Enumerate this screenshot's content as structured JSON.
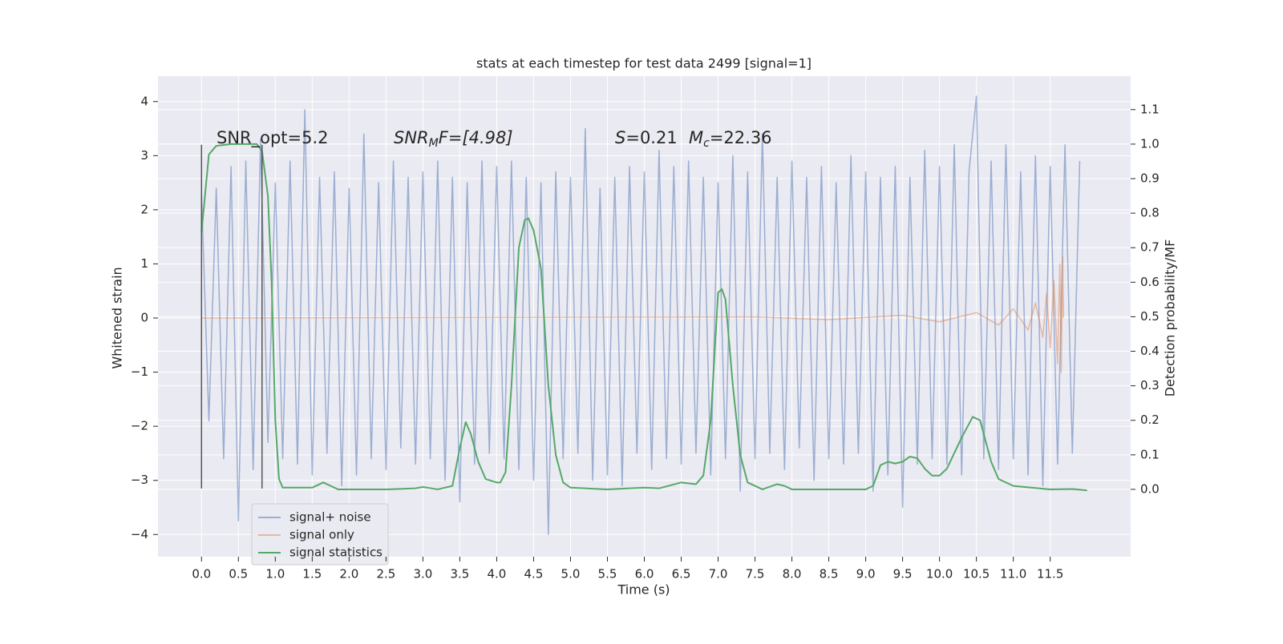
{
  "chart_data": {
    "type": "line",
    "title": "stats at each timestep for test data 2499 [signal=1]",
    "xlabel": "Time (s)",
    "ylabel": "Whitened strain",
    "y2label": "Detection probability/MF",
    "annotations": [
      [
        "SNR_opt=5.2"
      ],
      [
        "SNR",
        "M",
        "F=[4.98]"
      ],
      [
        "S",
        "=0.21"
      ],
      [
        "M",
        "c",
        "=22.36"
      ]
    ],
    "xlim": [
      -0.59,
      12.59
    ],
    "ylim": [
      -4.41,
      4.47
    ],
    "y2lim": [
      -0.195,
      1.197
    ],
    "xticks": [
      {
        "value": 0,
        "label": "0.0"
      },
      {
        "value": 0.5,
        "label": "0.5"
      },
      {
        "value": 1,
        "label": "1.0"
      },
      {
        "value": 1.5,
        "label": "1.5"
      },
      {
        "value": 2,
        "label": "2.0"
      },
      {
        "value": 2.5,
        "label": "2.5"
      },
      {
        "value": 3,
        "label": "3.0"
      },
      {
        "value": 3.5,
        "label": "3.5"
      },
      {
        "value": 4,
        "label": "4.0"
      },
      {
        "value": 4.5,
        "label": "4.5"
      },
      {
        "value": 5,
        "label": "5.0"
      },
      {
        "value": 5.5,
        "label": "5.5"
      },
      {
        "value": 6,
        "label": "6.0"
      },
      {
        "value": 6.5,
        "label": "6.5"
      },
      {
        "value": 7,
        "label": "7.0"
      },
      {
        "value": 7.5,
        "label": "7.5"
      },
      {
        "value": 8,
        "label": "8.0"
      },
      {
        "value": 8.5,
        "label": "8.5"
      },
      {
        "value": 9,
        "label": "9.0"
      },
      {
        "value": 9.5,
        "label": "9.5"
      },
      {
        "value": 10,
        "label": "10.0"
      },
      {
        "value": 10.5,
        "label": "10.5"
      },
      {
        "value": 11,
        "label": "11.0"
      },
      {
        "value": 11.5,
        "label": "11.5"
      }
    ],
    "yticks": [
      {
        "value": -4,
        "label": "−4"
      },
      {
        "value": -3,
        "label": "−3"
      },
      {
        "value": -2,
        "label": "−2"
      },
      {
        "value": -1,
        "label": "−1"
      },
      0,
      1,
      2,
      3,
      4
    ],
    "y2ticks": [
      {
        "value": 0,
        "label": "0.0"
      },
      {
        "value": 0.1,
        "label": "0.1"
      },
      {
        "value": 0.2,
        "label": "0.2"
      },
      {
        "value": 0.3,
        "label": "0.3"
      },
      {
        "value": 0.4,
        "label": "0.4"
      },
      {
        "value": 0.5,
        "label": "0.5"
      },
      {
        "value": 0.6,
        "label": "0.6"
      },
      {
        "value": 0.7,
        "label": "0.7"
      },
      {
        "value": 0.8,
        "label": "0.8"
      },
      {
        "value": 0.9,
        "label": "0.9"
      },
      {
        "value": 1,
        "label": "1.0"
      },
      {
        "value": 1.1,
        "label": "1.1"
      }
    ],
    "grid": true,
    "legend": "lower left",
    "vlines": [
      {
        "x": 0,
        "ymin": -3.15,
        "ymax": 3.2,
        "color": "#555555"
      },
      {
        "x": 0.82,
        "ymin": -3.15,
        "ymax": 3.2,
        "color": "#555555"
      }
    ],
    "series": [
      {
        "name": "signal+ noise",
        "color": "#4c72b0",
        "alpha": 0.5,
        "x": [
          0,
          0.1,
          0.2,
          0.3,
          0.4,
          0.5,
          0.6,
          0.7,
          0.8,
          0.9,
          1,
          1.1,
          1.2,
          1.3,
          1.4,
          1.5,
          1.6,
          1.7,
          1.8,
          1.9,
          2,
          2.1,
          2.2,
          2.3,
          2.4,
          2.5,
          2.6,
          2.7,
          2.8,
          2.9,
          3,
          3.1,
          3.2,
          3.3,
          3.4,
          3.5,
          3.6,
          3.7,
          3.8,
          3.9,
          4,
          4.1,
          4.2,
          4.3,
          4.4,
          4.5,
          4.6,
          4.7,
          4.8,
          4.9,
          5,
          5.1,
          5.2,
          5.3,
          5.4,
          5.5,
          5.6,
          5.7,
          5.8,
          5.9,
          6,
          6.1,
          6.2,
          6.3,
          6.4,
          6.5,
          6.6,
          6.7,
          6.8,
          6.9,
          7,
          7.1,
          7.2,
          7.3,
          7.4,
          7.5,
          7.6,
          7.7,
          7.8,
          7.9,
          8,
          8.1,
          8.2,
          8.3,
          8.4,
          8.5,
          8.6,
          8.7,
          8.8,
          8.9,
          9,
          9.1,
          9.2,
          9.3,
          9.4,
          9.5,
          9.6,
          9.7,
          9.8,
          9.9,
          10,
          10.1,
          10.2,
          10.3,
          10.4,
          10.5,
          10.6,
          10.7,
          10.8,
          10.9,
          11,
          11.1,
          11.2,
          11.3,
          11.4,
          11.5,
          11.6,
          11.7,
          11.8,
          11.9
        ],
        "values": [
          2.3,
          -1.9,
          2.4,
          -2.6,
          2.8,
          -3.75,
          2.9,
          -2.8,
          3.3,
          -2.3,
          2.5,
          -2.6,
          2.9,
          -2.7,
          3.85,
          -2.9,
          2.6,
          -2.5,
          2.7,
          -3.1,
          2.4,
          -2.9,
          3.4,
          -2.6,
          2.5,
          -2.8,
          2.9,
          -2.4,
          2.6,
          -2.7,
          2.7,
          -2.6,
          2.9,
          -3.0,
          2.6,
          -3.4,
          2.5,
          -2.7,
          2.9,
          -2.5,
          2.8,
          -2.6,
          2.9,
          -2.8,
          2.6,
          -3.0,
          2.5,
          -4.0,
          2.7,
          -2.6,
          2.6,
          -2.5,
          3.5,
          -3.0,
          2.4,
          -2.9,
          2.6,
          -3.1,
          2.8,
          -2.5,
          2.7,
          -2.8,
          3.1,
          -2.6,
          2.8,
          -2.7,
          2.9,
          -2.5,
          2.6,
          -2.9,
          2.5,
          -2.6,
          3.0,
          -3.2,
          2.7,
          -2.6,
          3.4,
          -2.5,
          2.6,
          -2.8,
          2.9,
          -2.4,
          2.6,
          -3.0,
          2.8,
          -2.6,
          2.5,
          -2.7,
          3.0,
          -2.5,
          2.7,
          -3.2,
          2.6,
          -2.9,
          2.8,
          -3.5,
          2.6,
          -2.7,
          3.1,
          -2.6,
          2.8,
          -2.7,
          3.2,
          -2.9,
          2.7,
          4.1,
          -2.6,
          2.9,
          -2.8,
          3.2,
          -2.6,
          2.7,
          -2.9,
          3.0,
          -3.1,
          2.8,
          -2.7,
          3.2,
          -2.5,
          2.9
        ]
      },
      {
        "name": "signal only",
        "color": "#dd8452",
        "alpha": 0.5,
        "x": [
          0,
          7.5,
          8.5,
          9.5,
          10.0,
          10.5,
          10.8,
          11.0,
          11.2,
          11.3,
          11.4,
          11.45,
          11.5,
          11.55,
          11.6,
          11.63,
          11.65,
          11.67,
          11.68
        ],
        "values": [
          0,
          0.02,
          -0.03,
          0.05,
          -0.07,
          0.1,
          -0.13,
          0.17,
          -0.22,
          0.28,
          -0.36,
          0.45,
          -0.55,
          0.7,
          -0.85,
          1.0,
          -1.0,
          1.13,
          0
        ]
      },
      {
        "name": "signal statistics",
        "color": "#55a868",
        "alpha": 1,
        "axis": "y2",
        "x": [
          0,
          0.1,
          0.2,
          0.4,
          0.6,
          0.75,
          0.82,
          0.9,
          0.95,
          1.0,
          1.05,
          1.1,
          1.5,
          1.65,
          1.75,
          1.85,
          2.5,
          2.9,
          3.0,
          3.2,
          3.4,
          3.5,
          3.58,
          3.65,
          3.75,
          3.85,
          4.0,
          4.05,
          4.12,
          4.2,
          4.3,
          4.38,
          4.43,
          4.5,
          4.6,
          4.7,
          4.8,
          4.9,
          5.0,
          5.5,
          6.0,
          6.2,
          6.5,
          6.7,
          6.8,
          6.9,
          7.0,
          7.05,
          7.1,
          7.2,
          7.3,
          7.4,
          7.6,
          7.8,
          7.9,
          8.0,
          8.5,
          9.0,
          9.1,
          9.2,
          9.3,
          9.4,
          9.5,
          9.6,
          9.7,
          9.8,
          9.9,
          10.0,
          10.1,
          10.3,
          10.45,
          10.55,
          10.7,
          10.8,
          11.0,
          11.5,
          11.8,
          12.0
        ],
        "values": [
          0.745,
          0.97,
          0.995,
          1.0,
          1.0,
          1.0,
          0.98,
          0.85,
          0.6,
          0.2,
          0.03,
          0.005,
          0.005,
          0.02,
          0.01,
          0.0,
          0.0,
          0.003,
          0.007,
          0.0,
          0.01,
          0.12,
          0.195,
          0.16,
          0.08,
          0.03,
          0.02,
          0.02,
          0.05,
          0.3,
          0.7,
          0.78,
          0.785,
          0.75,
          0.64,
          0.3,
          0.1,
          0.02,
          0.005,
          0.0,
          0.005,
          0.003,
          0.02,
          0.015,
          0.04,
          0.2,
          0.57,
          0.58,
          0.55,
          0.3,
          0.1,
          0.02,
          0.0,
          0.015,
          0.01,
          0.0,
          0.0,
          0.0,
          0.01,
          0.07,
          0.08,
          0.075,
          0.08,
          0.095,
          0.09,
          0.06,
          0.04,
          0.04,
          0.06,
          0.15,
          0.21,
          0.2,
          0.08,
          0.03,
          0.01,
          0.0,
          0.001,
          -0.003
        ]
      }
    ]
  }
}
